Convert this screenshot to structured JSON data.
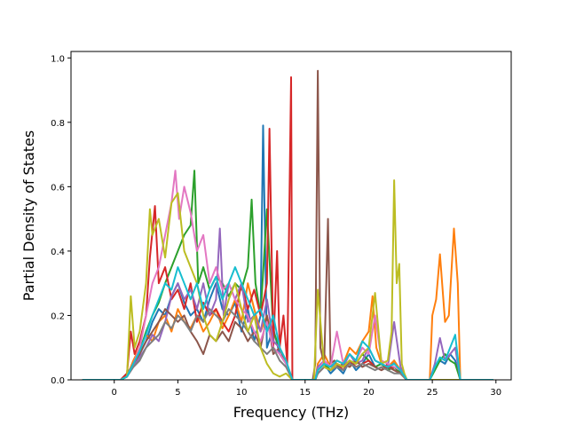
{
  "chart_data": {
    "type": "line",
    "title": "",
    "xlabel": "Frequency (THz)",
    "ylabel": "Partial Density of States",
    "xlim": [
      -3.4,
      31.2
    ],
    "ylim": [
      0.0,
      1.02
    ],
    "xticks": [
      0,
      5,
      10,
      15,
      20,
      25,
      30
    ],
    "yticks": [
      0.0,
      0.2,
      0.4,
      0.6,
      0.8,
      1.0
    ],
    "xtick_labels": [
      "0",
      "5",
      "10",
      "15",
      "20",
      "25",
      "30"
    ],
    "ytick_labels": [
      "0.0",
      "0.2",
      "0.4",
      "0.6",
      "0.8",
      "1.0"
    ],
    "grid": false,
    "legend": "none",
    "series": [
      {
        "color": "#1f77b4",
        "x": [
          -2.5,
          0.5,
          1.0,
          1.5,
          2.0,
          2.5,
          3.0,
          3.5,
          4.0,
          4.5,
          5.0,
          5.5,
          6.0,
          6.5,
          7.0,
          7.5,
          8.0,
          8.5,
          9.0,
          9.5,
          10.0,
          10.5,
          11.0,
          11.5,
          11.7,
          12.0,
          12.5,
          13.0,
          13.5,
          13.8,
          14.0,
          15.8,
          16.0,
          16.5,
          17.0,
          17.5,
          18.0,
          18.5,
          19.0,
          19.5,
          20.0,
          20.5,
          21.0,
          21.5,
          22.0,
          22.5,
          23.0,
          24.8,
          25.2,
          25.6,
          26.0,
          26.4,
          26.8,
          27.2,
          29.8
        ],
        "y": [
          0.0,
          0.0,
          0.02,
          0.05,
          0.08,
          0.12,
          0.18,
          0.22,
          0.2,
          0.26,
          0.3,
          0.24,
          0.2,
          0.22,
          0.18,
          0.25,
          0.3,
          0.22,
          0.2,
          0.24,
          0.15,
          0.22,
          0.12,
          0.2,
          0.79,
          0.1,
          0.16,
          0.08,
          0.05,
          0.02,
          0.0,
          0.0,
          0.03,
          0.05,
          0.02,
          0.04,
          0.02,
          0.06,
          0.03,
          0.05,
          0.08,
          0.04,
          0.05,
          0.03,
          0.06,
          0.02,
          0.0,
          0.0,
          0.04,
          0.06,
          0.05,
          0.08,
          0.06,
          0.0,
          0.0
        ]
      },
      {
        "color": "#ff7f0e",
        "x": [
          -2.5,
          0.5,
          1.0,
          1.5,
          2.0,
          2.5,
          3.0,
          3.5,
          4.0,
          4.5,
          5.0,
          5.5,
          6.0,
          6.5,
          7.0,
          7.5,
          8.0,
          8.5,
          9.0,
          9.5,
          10.0,
          10.5,
          11.0,
          11.5,
          12.0,
          12.5,
          13.0,
          13.5,
          14.0,
          15.8,
          16.0,
          16.5,
          17.0,
          17.5,
          18.0,
          18.5,
          19.0,
          19.5,
          20.0,
          20.3,
          20.6,
          21.0,
          21.5,
          22.0,
          22.5,
          23.0,
          24.8,
          25.0,
          25.3,
          25.6,
          26.0,
          26.3,
          26.7,
          27.0,
          27.2,
          29.8
        ],
        "y": [
          0.0,
          0.0,
          0.01,
          0.06,
          0.1,
          0.14,
          0.12,
          0.18,
          0.2,
          0.15,
          0.22,
          0.18,
          0.16,
          0.2,
          0.15,
          0.18,
          0.22,
          0.16,
          0.2,
          0.25,
          0.18,
          0.3,
          0.22,
          0.15,
          0.2,
          0.12,
          0.1,
          0.06,
          0.0,
          0.0,
          0.05,
          0.08,
          0.04,
          0.06,
          0.05,
          0.1,
          0.08,
          0.12,
          0.15,
          0.26,
          0.1,
          0.05,
          0.04,
          0.06,
          0.03,
          0.0,
          0.0,
          0.2,
          0.25,
          0.39,
          0.18,
          0.2,
          0.47,
          0.3,
          0.0,
          0.0
        ]
      },
      {
        "color": "#2ca02c",
        "x": [
          -2.5,
          0.5,
          1.0,
          1.5,
          2.0,
          2.5,
          3.0,
          3.5,
          4.0,
          4.5,
          5.0,
          5.5,
          6.0,
          6.3,
          6.6,
          7.0,
          7.5,
          8.0,
          8.5,
          9.0,
          9.5,
          10.0,
          10.5,
          10.8,
          11.1,
          11.5,
          12.0,
          12.5,
          13.0,
          13.5,
          14.0,
          15.8,
          16.0,
          16.5,
          17.0,
          17.5,
          18.0,
          18.5,
          19.0,
          19.5,
          20.0,
          20.5,
          21.0,
          21.5,
          22.0,
          22.5,
          23.0,
          24.8,
          25.2,
          25.6,
          26.0,
          26.4,
          26.8,
          27.2,
          29.8
        ],
        "y": [
          0.0,
          0.0,
          0.01,
          0.05,
          0.09,
          0.15,
          0.2,
          0.24,
          0.3,
          0.35,
          0.4,
          0.45,
          0.48,
          0.65,
          0.3,
          0.35,
          0.28,
          0.32,
          0.3,
          0.26,
          0.3,
          0.28,
          0.35,
          0.56,
          0.3,
          0.2,
          0.53,
          0.15,
          0.1,
          0.05,
          0.0,
          0.0,
          0.03,
          0.05,
          0.03,
          0.05,
          0.04,
          0.06,
          0.05,
          0.08,
          0.06,
          0.04,
          0.05,
          0.03,
          0.04,
          0.02,
          0.0,
          0.0,
          0.03,
          0.06,
          0.08,
          0.06,
          0.05,
          0.0,
          0.0
        ]
      },
      {
        "color": "#d62728",
        "x": [
          -2.5,
          0.5,
          1.0,
          1.3,
          1.6,
          2.0,
          2.5,
          2.8,
          3.2,
          3.5,
          4.0,
          4.5,
          5.0,
          5.5,
          6.0,
          6.5,
          7.0,
          7.5,
          8.0,
          8.5,
          9.0,
          9.5,
          10.0,
          10.5,
          11.0,
          11.5,
          12.0,
          12.2,
          12.5,
          12.8,
          13.0,
          13.3,
          13.6,
          13.9,
          14.0,
          15.8,
          16.0,
          16.5,
          17.0,
          17.5,
          18.0,
          18.5,
          19.0,
          19.5,
          20.0,
          20.5,
          21.0,
          21.5,
          22.0,
          22.5,
          23.0,
          29.8
        ],
        "y": [
          0.0,
          0.0,
          0.02,
          0.15,
          0.08,
          0.12,
          0.2,
          0.38,
          0.54,
          0.3,
          0.35,
          0.25,
          0.28,
          0.22,
          0.3,
          0.18,
          0.24,
          0.2,
          0.22,
          0.18,
          0.15,
          0.2,
          0.3,
          0.22,
          0.28,
          0.2,
          0.3,
          0.78,
          0.1,
          0.4,
          0.1,
          0.2,
          0.05,
          0.94,
          0.0,
          0.0,
          0.02,
          0.04,
          0.03,
          0.05,
          0.03,
          0.06,
          0.04,
          0.05,
          0.06,
          0.04,
          0.03,
          0.05,
          0.03,
          0.02,
          0.0,
          0.0
        ]
      },
      {
        "color": "#9467bd",
        "x": [
          -2.5,
          0.5,
          1.0,
          1.5,
          2.0,
          2.5,
          3.0,
          3.5,
          4.0,
          4.5,
          5.0,
          5.5,
          6.0,
          6.5,
          7.0,
          7.5,
          8.0,
          8.3,
          8.6,
          9.0,
          9.5,
          10.0,
          10.5,
          11.0,
          11.5,
          12.0,
          12.5,
          13.0,
          13.5,
          14.0,
          15.8,
          16.0,
          16.5,
          17.0,
          17.5,
          18.0,
          18.5,
          19.0,
          19.5,
          20.0,
          20.5,
          21.0,
          21.5,
          22.0,
          22.5,
          23.0,
          24.8,
          25.2,
          25.6,
          26.0,
          26.4,
          26.8,
          27.2,
          29.8
        ],
        "y": [
          0.0,
          0.0,
          0.01,
          0.04,
          0.07,
          0.1,
          0.14,
          0.12,
          0.18,
          0.26,
          0.3,
          0.25,
          0.28,
          0.22,
          0.3,
          0.2,
          0.25,
          0.47,
          0.2,
          0.3,
          0.25,
          0.3,
          0.18,
          0.2,
          0.15,
          0.25,
          0.12,
          0.1,
          0.05,
          0.0,
          0.0,
          0.04,
          0.06,
          0.04,
          0.05,
          0.04,
          0.08,
          0.05,
          0.06,
          0.1,
          0.06,
          0.05,
          0.04,
          0.18,
          0.04,
          0.0,
          0.0,
          0.05,
          0.13,
          0.06,
          0.08,
          0.1,
          0.0,
          0.0
        ]
      },
      {
        "color": "#8c564b",
        "x": [
          -2.5,
          0.5,
          1.0,
          1.5,
          2.0,
          2.5,
          3.0,
          3.5,
          4.0,
          4.5,
          5.0,
          5.5,
          6.0,
          6.5,
          7.0,
          7.5,
          8.0,
          8.5,
          9.0,
          9.5,
          10.0,
          10.5,
          11.0,
          11.5,
          12.0,
          12.5,
          13.0,
          13.5,
          14.0,
          15.6,
          15.8,
          16.0,
          16.2,
          16.5,
          16.8,
          17.0,
          17.3,
          17.6,
          18.0,
          18.5,
          19.0,
          19.5,
          20.0,
          20.5,
          21.0,
          21.5,
          22.0,
          22.5,
          23.0,
          29.8
        ],
        "y": [
          0.0,
          0.0,
          0.01,
          0.05,
          0.08,
          0.12,
          0.15,
          0.18,
          0.22,
          0.2,
          0.18,
          0.2,
          0.15,
          0.12,
          0.08,
          0.14,
          0.12,
          0.15,
          0.12,
          0.18,
          0.16,
          0.12,
          0.15,
          0.1,
          0.2,
          0.08,
          0.1,
          0.05,
          0.0,
          0.0,
          0.05,
          0.96,
          0.1,
          0.05,
          0.5,
          0.05,
          0.06,
          0.04,
          0.05,
          0.04,
          0.06,
          0.04,
          0.05,
          0.04,
          0.03,
          0.04,
          0.03,
          0.02,
          0.0,
          0.0
        ]
      },
      {
        "color": "#e377c2",
        "x": [
          -2.5,
          0.5,
          1.0,
          1.5,
          2.0,
          2.5,
          3.0,
          3.5,
          4.0,
          4.5,
          4.8,
          5.1,
          5.5,
          6.0,
          6.5,
          7.0,
          7.5,
          8.0,
          8.5,
          9.0,
          9.5,
          10.0,
          10.5,
          11.0,
          11.5,
          12.0,
          12.5,
          13.0,
          13.5,
          14.0,
          15.8,
          16.0,
          16.5,
          17.0,
          17.5,
          18.0,
          18.5,
          19.0,
          19.5,
          20.0,
          20.5,
          21.0,
          21.5,
          22.0,
          22.5,
          23.0,
          29.8
        ],
        "y": [
          0.0,
          0.0,
          0.01,
          0.05,
          0.1,
          0.2,
          0.3,
          0.35,
          0.45,
          0.55,
          0.65,
          0.5,
          0.6,
          0.52,
          0.4,
          0.45,
          0.3,
          0.35,
          0.28,
          0.3,
          0.25,
          0.22,
          0.2,
          0.15,
          0.12,
          0.18,
          0.1,
          0.08,
          0.05,
          0.0,
          0.0,
          0.03,
          0.06,
          0.04,
          0.15,
          0.05,
          0.08,
          0.06,
          0.1,
          0.08,
          0.2,
          0.06,
          0.05,
          0.04,
          0.03,
          0.0,
          0.0
        ]
      },
      {
        "color": "#7f7f7f",
        "x": [
          -2.5,
          0.5,
          1.0,
          1.5,
          2.0,
          2.5,
          3.0,
          3.5,
          4.0,
          4.5,
          5.0,
          5.5,
          6.0,
          6.5,
          7.0,
          7.5,
          8.0,
          8.5,
          9.0,
          9.5,
          10.0,
          10.5,
          11.0,
          11.5,
          12.0,
          12.5,
          13.0,
          13.5,
          14.0,
          15.8,
          16.0,
          16.5,
          17.0,
          17.5,
          18.0,
          18.5,
          19.0,
          19.5,
          20.0,
          20.5,
          21.0,
          21.5,
          22.0,
          22.5,
          23.0,
          29.8
        ],
        "y": [
          0.0,
          0.0,
          0.01,
          0.04,
          0.06,
          0.1,
          0.12,
          0.14,
          0.18,
          0.16,
          0.2,
          0.18,
          0.15,
          0.2,
          0.18,
          0.22,
          0.2,
          0.18,
          0.22,
          0.2,
          0.18,
          0.15,
          0.12,
          0.1,
          0.08,
          0.1,
          0.06,
          0.04,
          0.0,
          0.0,
          0.02,
          0.04,
          0.03,
          0.04,
          0.03,
          0.05,
          0.04,
          0.05,
          0.04,
          0.03,
          0.04,
          0.03,
          0.02,
          0.02,
          0.0,
          0.0
        ]
      },
      {
        "color": "#bcbd22",
        "x": [
          -2.5,
          0.5,
          1.0,
          1.3,
          1.6,
          2.0,
          2.5,
          2.8,
          3.0,
          3.5,
          4.0,
          4.5,
          5.0,
          5.5,
          6.0,
          6.5,
          7.0,
          7.5,
          8.0,
          8.5,
          9.0,
          9.5,
          10.0,
          10.5,
          11.0,
          11.5,
          12.0,
          12.5,
          13.0,
          13.5,
          14.0,
          15.7,
          16.0,
          16.5,
          17.0,
          17.5,
          18.0,
          18.5,
          19.0,
          19.5,
          20.0,
          20.5,
          21.0,
          21.5,
          21.8,
          22.0,
          22.2,
          22.4,
          22.6,
          22.8,
          23.0,
          29.8
        ],
        "y": [
          0.0,
          0.0,
          0.01,
          0.26,
          0.1,
          0.15,
          0.3,
          0.53,
          0.45,
          0.5,
          0.38,
          0.55,
          0.58,
          0.4,
          0.35,
          0.3,
          0.2,
          0.14,
          0.12,
          0.18,
          0.25,
          0.3,
          0.22,
          0.15,
          0.2,
          0.1,
          0.05,
          0.02,
          0.01,
          0.02,
          0.0,
          0.0,
          0.28,
          0.04,
          0.03,
          0.05,
          0.04,
          0.06,
          0.05,
          0.08,
          0.1,
          0.27,
          0.05,
          0.06,
          0.15,
          0.62,
          0.3,
          0.36,
          0.05,
          0.02,
          0.0,
          0.0
        ]
      },
      {
        "color": "#17becf",
        "x": [
          -2.5,
          0.5,
          1.0,
          1.5,
          2.0,
          2.5,
          3.0,
          3.5,
          4.0,
          4.5,
          5.0,
          5.5,
          6.0,
          6.5,
          7.0,
          7.5,
          8.0,
          8.5,
          9.0,
          9.5,
          10.0,
          10.5,
          11.0,
          11.5,
          12.0,
          12.5,
          13.0,
          13.5,
          14.0,
          15.8,
          16.0,
          16.5,
          17.0,
          17.5,
          18.0,
          18.5,
          19.0,
          19.5,
          20.0,
          20.5,
          21.0,
          21.5,
          22.0,
          22.5,
          23.0,
          24.8,
          25.2,
          25.6,
          26.0,
          26.4,
          26.8,
          27.2,
          29.8
        ],
        "y": [
          0.0,
          0.0,
          0.01,
          0.05,
          0.09,
          0.14,
          0.2,
          0.25,
          0.3,
          0.28,
          0.35,
          0.3,
          0.25,
          0.3,
          0.22,
          0.28,
          0.32,
          0.25,
          0.3,
          0.35,
          0.3,
          0.25,
          0.2,
          0.22,
          0.15,
          0.2,
          0.1,
          0.06,
          0.0,
          0.0,
          0.03,
          0.05,
          0.04,
          0.06,
          0.05,
          0.08,
          0.06,
          0.12,
          0.1,
          0.06,
          0.05,
          0.04,
          0.05,
          0.03,
          0.0,
          0.0,
          0.04,
          0.07,
          0.06,
          0.1,
          0.14,
          0.0,
          0.0
        ]
      }
    ]
  }
}
